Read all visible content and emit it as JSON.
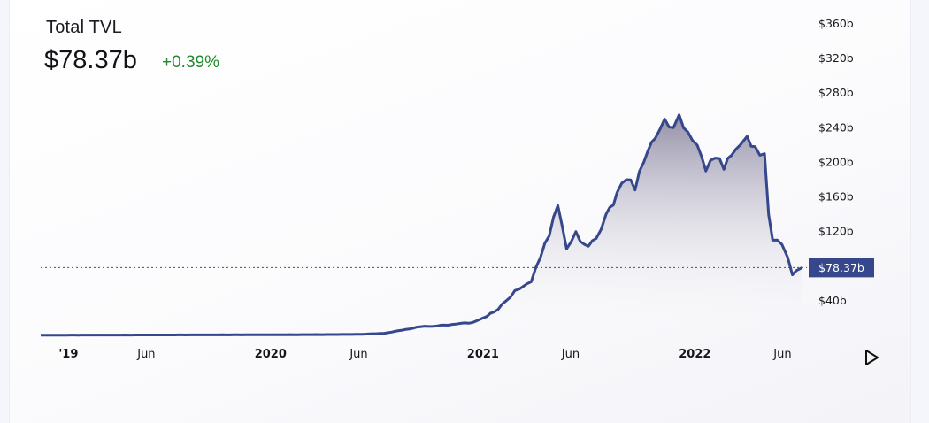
{
  "header": {
    "title": "Total TVL",
    "value": "$78.37b",
    "change": "+0.39%"
  },
  "colors": {
    "line": "#36478c",
    "fill_top": "#8e8aa3",
    "positive": "#1e8a2b",
    "badge": "#36478c"
  },
  "controls": {
    "play_icon": "play-triangle-icon"
  },
  "chart_data": {
    "type": "area",
    "y_unit": "billions USD",
    "ylim": [
      0,
      360
    ],
    "y_ticks": [
      {
        "value": 40,
        "label": "$40b"
      },
      {
        "value": 120,
        "label": "$120b"
      },
      {
        "value": 160,
        "label": "$160b"
      },
      {
        "value": 200,
        "label": "$200b"
      },
      {
        "value": 240,
        "label": "$240b"
      },
      {
        "value": 280,
        "label": "$280b"
      },
      {
        "value": 320,
        "label": "$320b"
      },
      {
        "value": 360,
        "label": "$360b"
      }
    ],
    "x_ticks": [
      {
        "date": "2019-01-01",
        "label": "'19",
        "major": true
      },
      {
        "date": "2019-06-01",
        "label": "Jun",
        "major": false
      },
      {
        "date": "2020-01-01",
        "label": "2020",
        "major": true
      },
      {
        "date": "2020-06-01",
        "label": "Jun",
        "major": false
      },
      {
        "date": "2021-01-01",
        "label": "2021",
        "major": true
      },
      {
        "date": "2021-06-01",
        "label": "Jun",
        "major": false
      },
      {
        "date": "2022-01-01",
        "label": "2022",
        "major": true
      },
      {
        "date": "2022-06-01",
        "label": "Jun",
        "major": false
      }
    ],
    "current": {
      "value": 78.37,
      "label": "$78.37b"
    },
    "series": [
      {
        "points": [
          [
            "2018-12-01",
            0.3
          ],
          [
            "2019-03-01",
            0.4
          ],
          [
            "2019-06-01",
            0.5
          ],
          [
            "2019-09-01",
            0.6
          ],
          [
            "2019-12-01",
            0.7
          ],
          [
            "2020-03-01",
            0.9
          ],
          [
            "2020-06-01",
            1.2
          ],
          [
            "2020-07-15",
            2.5
          ],
          [
            "2020-08-15",
            6
          ],
          [
            "2020-09-15",
            10
          ],
          [
            "2020-10-15",
            11
          ],
          [
            "2020-11-15",
            13
          ],
          [
            "2020-12-15",
            15
          ],
          [
            "2021-01-01",
            20
          ],
          [
            "2021-01-20",
            27
          ],
          [
            "2021-02-10",
            40
          ],
          [
            "2021-02-25",
            52
          ],
          [
            "2021-03-10",
            56
          ],
          [
            "2021-03-25",
            62
          ],
          [
            "2021-04-10",
            90
          ],
          [
            "2021-04-25",
            115
          ],
          [
            "2021-05-10",
            150
          ],
          [
            "2021-05-25",
            100
          ],
          [
            "2021-06-10",
            120
          ],
          [
            "2021-06-25",
            105
          ],
          [
            "2021-07-15",
            112
          ],
          [
            "2021-08-01",
            140
          ],
          [
            "2021-08-20",
            165
          ],
          [
            "2021-09-05",
            180
          ],
          [
            "2021-09-20",
            168
          ],
          [
            "2021-10-05",
            200
          ],
          [
            "2021-10-25",
            228
          ],
          [
            "2021-11-10",
            250
          ],
          [
            "2021-11-25",
            240
          ],
          [
            "2021-12-05",
            255
          ],
          [
            "2021-12-20",
            235
          ],
          [
            "2022-01-05",
            220
          ],
          [
            "2022-01-20",
            190
          ],
          [
            "2022-02-05",
            205
          ],
          [
            "2022-02-20",
            192
          ],
          [
            "2022-03-05",
            208
          ],
          [
            "2022-03-20",
            220
          ],
          [
            "2022-04-01",
            230
          ],
          [
            "2022-04-15",
            218
          ],
          [
            "2022-05-01",
            210
          ],
          [
            "2022-05-08",
            140
          ],
          [
            "2022-05-15",
            110
          ],
          [
            "2022-05-31",
            105
          ],
          [
            "2022-06-10",
            90
          ],
          [
            "2022-06-18",
            70
          ],
          [
            "2022-06-25",
            75
          ],
          [
            "2022-07-05",
            78.37
          ]
        ]
      }
    ]
  }
}
